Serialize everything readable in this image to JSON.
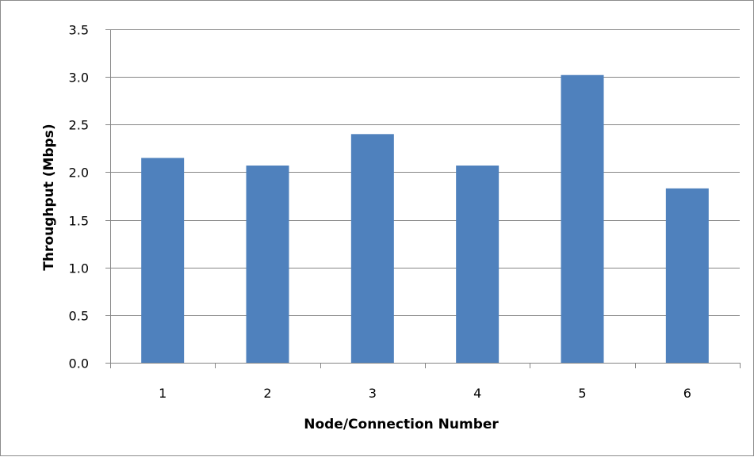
{
  "chart_data": {
    "type": "bar",
    "categories": [
      "1",
      "2",
      "3",
      "4",
      "5",
      "6"
    ],
    "values": [
      2.15,
      2.07,
      2.4,
      2.07,
      3.02,
      1.83
    ],
    "title": "",
    "xlabel": "Node/Connection Number",
    "ylabel": "Throughput (Mbps)",
    "ylim": [
      0,
      3.5
    ],
    "yticks": [
      "0.0",
      "0.5",
      "1.0",
      "1.5",
      "2.0",
      "2.5",
      "3.0",
      "3.5"
    ],
    "ytick_values": [
      0,
      0.5,
      1.0,
      1.5,
      2.0,
      2.5,
      3.0,
      3.5
    ],
    "grid": true,
    "legend": "none",
    "bar_color": "#4f81bd",
    "grid_color": "#868686"
  }
}
